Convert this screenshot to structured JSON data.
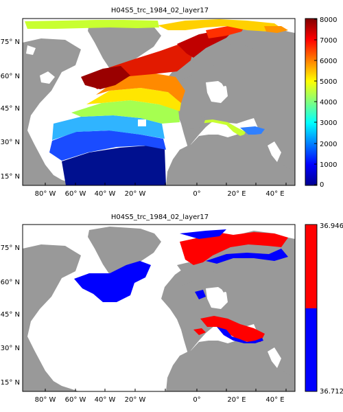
{
  "panels": [
    {
      "title": "H04S5_trc_1984_02_layer17",
      "lon_labels": [
        "80° W",
        "60° W",
        "40° W",
        "20° W",
        "0°",
        "20° E",
        "40° E"
      ],
      "lat_labels": [
        "75° N",
        "60° N",
        "45° N",
        "30° N",
        "15° N"
      ],
      "colorbar": {
        "type": "continuous",
        "colormap": "jet",
        "ticks": [
          "8000",
          "7000",
          "6000",
          "5000",
          "4000",
          "3000",
          "2000",
          "1000",
          "0"
        ]
      }
    },
    {
      "title": "H04S5_trc_1984_02_layer17",
      "lon_labels": [
        "80° W",
        "60° W",
        "40° W",
        "20° W",
        "0°",
        "20° E",
        "40° E"
      ],
      "lat_labels": [
        "75° N",
        "60° N",
        "45° N",
        "30° N",
        "15° N"
      ],
      "colorbar": {
        "type": "two-class",
        "ticks": [
          "36.946",
          "36.712"
        ],
        "colors": [
          "#ff0000",
          "#0000ff"
        ]
      }
    }
  ],
  "colors": {
    "land": "#999999",
    "ocean_nodata": "#ffffff",
    "frame": "#000000"
  }
}
